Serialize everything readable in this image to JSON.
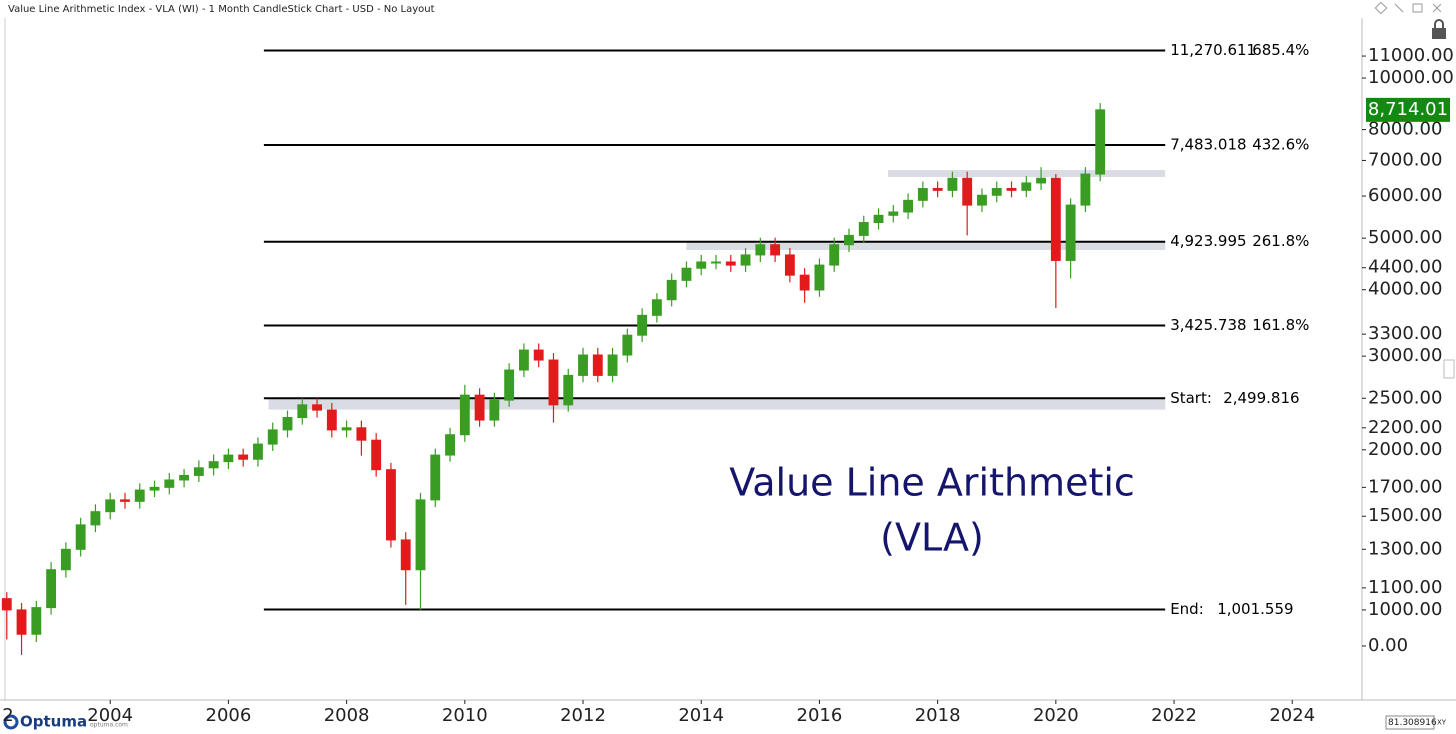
{
  "window_title": "Value Line Arithmetic Index - VLA (WI) - 1 Month CandleStick Chart - USD - No Layout",
  "chart_data": {
    "type": "candlestick",
    "annotation": [
      "Value Line Arithmetic",
      "(VLA)"
    ],
    "log_scale": true,
    "xlim": [
      2002.22,
      2025.18
    ],
    "ylim": [
      677,
      12970
    ],
    "xticks": [
      {
        "value": 2002,
        "label": "2"
      },
      2004,
      2006,
      2008,
      2010,
      2012,
      2014,
      2016,
      2018,
      2020,
      2022,
      2024
    ],
    "yticks": [
      {
        "value": 1000,
        "label": "1000.00"
      },
      {
        "value": 1100,
        "label": "1100.00"
      },
      {
        "value": 1300,
        "label": "1300.00"
      },
      {
        "value": 1500,
        "label": "1500.00"
      },
      {
        "value": 1700,
        "label": "1700.00"
      },
      {
        "value": 2000,
        "label": "2000.00"
      },
      {
        "value": 2200,
        "label": "2200.00"
      },
      {
        "value": 2500,
        "label": "2500.00"
      },
      {
        "value": 3000,
        "label": "3000.00"
      },
      {
        "value": 3300,
        "label": "3300.00"
      },
      {
        "value": 4000,
        "label": "4000.00"
      },
      {
        "value": 4400,
        "label": "4400.00"
      },
      {
        "value": 5000,
        "label": "5000.00"
      },
      {
        "value": 6000,
        "label": "6000.00"
      },
      {
        "value": 7000,
        "label": "7000.00"
      },
      {
        "value": 8000,
        "label": "8000.00"
      },
      {
        "value": 10000,
        "label": "10000.00"
      },
      {
        "value": 11000,
        "label": "11000.00"
      }
    ],
    "y_label_below": "0.00",
    "up_color": "#3a9d23",
    "down_color": "#e31a1c",
    "x": [
      2002.25,
      2002.5,
      2002.75,
      2003,
      2003.25,
      2003.5,
      2003.75,
      2004,
      2004.25,
      2004.5,
      2004.75,
      2005,
      2005.25,
      2005.5,
      2005.75,
      2006,
      2006.25,
      2006.5,
      2006.75,
      2007,
      2007.25,
      2007.5,
      2007.75,
      2008,
      2008.25,
      2008.5,
      2008.75,
      2009,
      2009.25,
      2009.5,
      2009.75,
      2010,
      2010.25,
      2010.5,
      2010.75,
      2011,
      2011.25,
      2011.5,
      2011.75,
      2012,
      2012.25,
      2012.5,
      2012.75,
      2013,
      2013.25,
      2013.5,
      2013.75,
      2014,
      2014.25,
      2014.5,
      2014.75,
      2015,
      2015.25,
      2015.5,
      2015.75,
      2016,
      2016.25,
      2016.5,
      2016.75,
      2017,
      2017.25,
      2017.5,
      2017.75,
      2018,
      2018.25,
      2018.5,
      2018.75,
      2019,
      2019.25,
      2019.5,
      2019.75,
      2020,
      2020.25,
      2020.5,
      2020.75
    ],
    "open": [
      1050,
      1000,
      900,
      1010,
      1190,
      1300,
      1445,
      1530,
      1610,
      1600,
      1680,
      1700,
      1755,
      1790,
      1850,
      1900,
      1955,
      1920,
      2050,
      2180,
      2300,
      2430,
      2375,
      2180,
      2200,
      2085,
      1835,
      1354,
      1190,
      1610,
      1955,
      2135,
      2534,
      2275,
      2480,
      2825,
      3080,
      2950,
      2430,
      2760,
      3015,
      2760,
      3015,
      3285,
      3580,
      3830,
      4165,
      4390,
      4510,
      4510,
      4450,
      4650,
      4860,
      4650,
      4260,
      3995,
      4450,
      4860,
      5060,
      5350,
      5520,
      5600,
      5890,
      6200,
      6150,
      6480,
      5770,
      6020,
      6200,
      6150,
      6350,
      6480,
      4540,
      5770,
      6600
    ],
    "high": [
      1080,
      1030,
      1040,
      1230,
      1340,
      1490,
      1580,
      1660,
      1660,
      1730,
      1750,
      1810,
      1840,
      1910,
      1960,
      2010,
      2010,
      2110,
      2250,
      2370,
      2500,
      2500,
      2450,
      2270,
      2270,
      2150,
      1890,
      1400,
      1660,
      2010,
      2200,
      2650,
      2610,
      2560,
      2910,
      3170,
      3170,
      3040,
      2840,
      3110,
      3110,
      3110,
      3380,
      3690,
      3940,
      4290,
      4520,
      4650,
      4650,
      4650,
      4790,
      5010,
      5010,
      4790,
      4390,
      4580,
      5010,
      5210,
      5510,
      5690,
      5770,
      6070,
      6390,
      6390,
      6670,
      6670,
      6200,
      6390,
      6390,
      6540,
      6800,
      6600,
      5940,
      6800,
      8975
    ],
    "low": [
      880,
      823,
      870,
      980,
      1150,
      1260,
      1400,
      1480,
      1550,
      1550,
      1630,
      1650,
      1700,
      1740,
      1790,
      1840,
      1860,
      1860,
      1990,
      2110,
      2230,
      2300,
      2110,
      2110,
      1950,
      1780,
      1310,
      1022,
      1000,
      1560,
      1900,
      2070,
      2210,
      2210,
      2410,
      2740,
      2860,
      2250,
      2360,
      2680,
      2680,
      2680,
      2920,
      3190,
      3470,
      3720,
      4040,
      4260,
      4370,
      4320,
      4320,
      4510,
      4510,
      4130,
      3780,
      3880,
      4320,
      4710,
      4910,
      5190,
      5350,
      5430,
      5710,
      5970,
      5970,
      5060,
      5600,
      5840,
      5970,
      5970,
      6160,
      3695,
      4200,
      5600,
      6400
    ],
    "close": [
      1000,
      900,
      1010,
      1190,
      1300,
      1445,
      1530,
      1610,
      1600,
      1680,
      1700,
      1755,
      1790,
      1850,
      1900,
      1955,
      1920,
      2050,
      2180,
      2300,
      2430,
      2375,
      2180,
      2200,
      2085,
      1835,
      1354,
      1190,
      1610,
      1955,
      2135,
      2534,
      2275,
      2480,
      2825,
      3080,
      2950,
      2430,
      2760,
      3015,
      2760,
      3015,
      3285,
      3580,
      3830,
      4165,
      4390,
      4510,
      4510,
      4450,
      4650,
      4860,
      4650,
      4260,
      3995,
      4450,
      4860,
      5060,
      5350,
      5520,
      5600,
      5890,
      6200,
      6150,
      6480,
      5770,
      6020,
      6200,
      6150,
      6350,
      6480,
      4540,
      5770,
      6600,
      8714.01
    ],
    "levels": [
      {
        "value": 11270.611,
        "label": "11,270.611",
        "note": "685.4%"
      },
      {
        "value": 7483.018,
        "label": "7,483.018",
        "note": "432.6%"
      },
      {
        "value": 4923.995,
        "label": "4,923.995",
        "note": "261.8%"
      },
      {
        "value": 3425.738,
        "label": "3,425.738",
        "note": "161.8%"
      },
      {
        "value": 2499.816,
        "prefix": "Start:",
        "label": "2,499.816"
      },
      {
        "value": 1001.559,
        "prefix": "End:",
        "label": "1,001.559"
      }
    ],
    "levels_xrange": [
      2006.6,
      2021.85
    ],
    "zones": [
      {
        "x": [
          2006.68,
          2021.85
        ],
        "y": [
          2380,
          2499.816
        ]
      },
      {
        "x": [
          2013.75,
          2021.85
        ],
        "y": [
          4750,
          4920
        ]
      },
      {
        "x": [
          2017.16,
          2021.85
        ],
        "y": [
          6515,
          6715
        ]
      }
    ],
    "zone_color": "#d9dce3",
    "last_price": {
      "value": 8714.01,
      "label": "8,714.01"
    },
    "last_price_color": "#128a12"
  },
  "logo": {
    "name": "Optuma",
    "url": "optuma.com"
  },
  "cursor_readout": "81.308916",
  "readout_mode": "XY"
}
